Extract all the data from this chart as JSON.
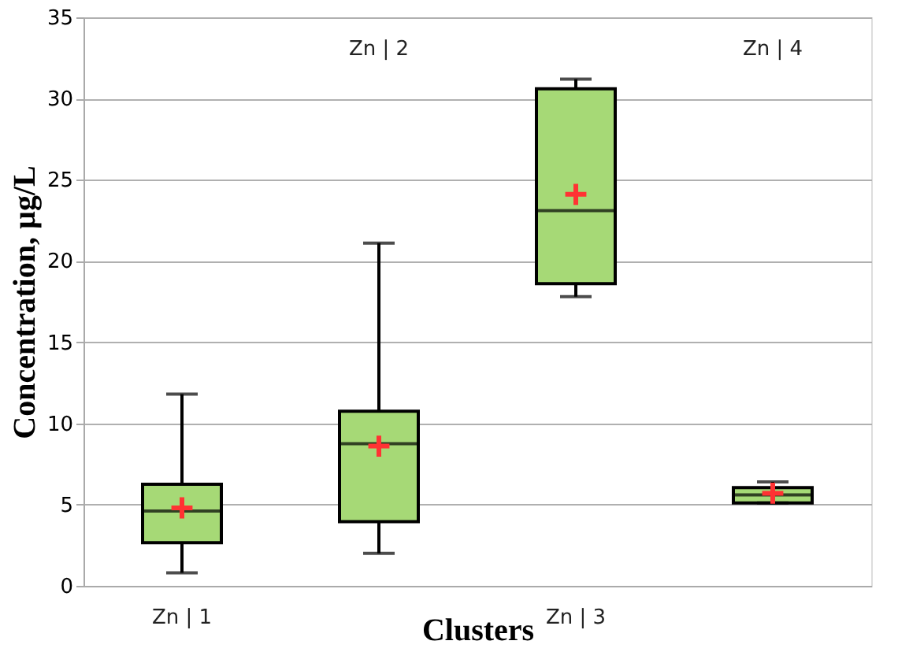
{
  "chart_data": {
    "type": "box",
    "xlabel": "Clusters",
    "ylabel": "Concentration, µg/L",
    "categories": [
      "Zn | 1",
      "Zn | 2",
      "Zn | 3",
      "Zn | 4"
    ],
    "boxes": [
      {
        "low": 0.8,
        "q1": 2.65,
        "median": 4.6,
        "q3": 6.25,
        "high": 11.8,
        "mean": 4.8
      },
      {
        "low": 2.0,
        "q1": 3.95,
        "median": 8.75,
        "q3": 10.75,
        "high": 21.1,
        "mean": 8.6
      },
      {
        "low": 17.8,
        "q1": 18.6,
        "median": 23.1,
        "q3": 30.6,
        "high": 31.2,
        "mean": 24.1
      },
      {
        "low": 5.1,
        "q1": 5.1,
        "median": 5.6,
        "q3": 6.05,
        "high": 6.4,
        "mean": 5.7
      }
    ],
    "color": "#a6d976",
    "ylim": [
      0,
      35
    ],
    "yticks": [
      0,
      5,
      10,
      15,
      20,
      25,
      30,
      35
    ],
    "grid": "y",
    "legend": false
  }
}
